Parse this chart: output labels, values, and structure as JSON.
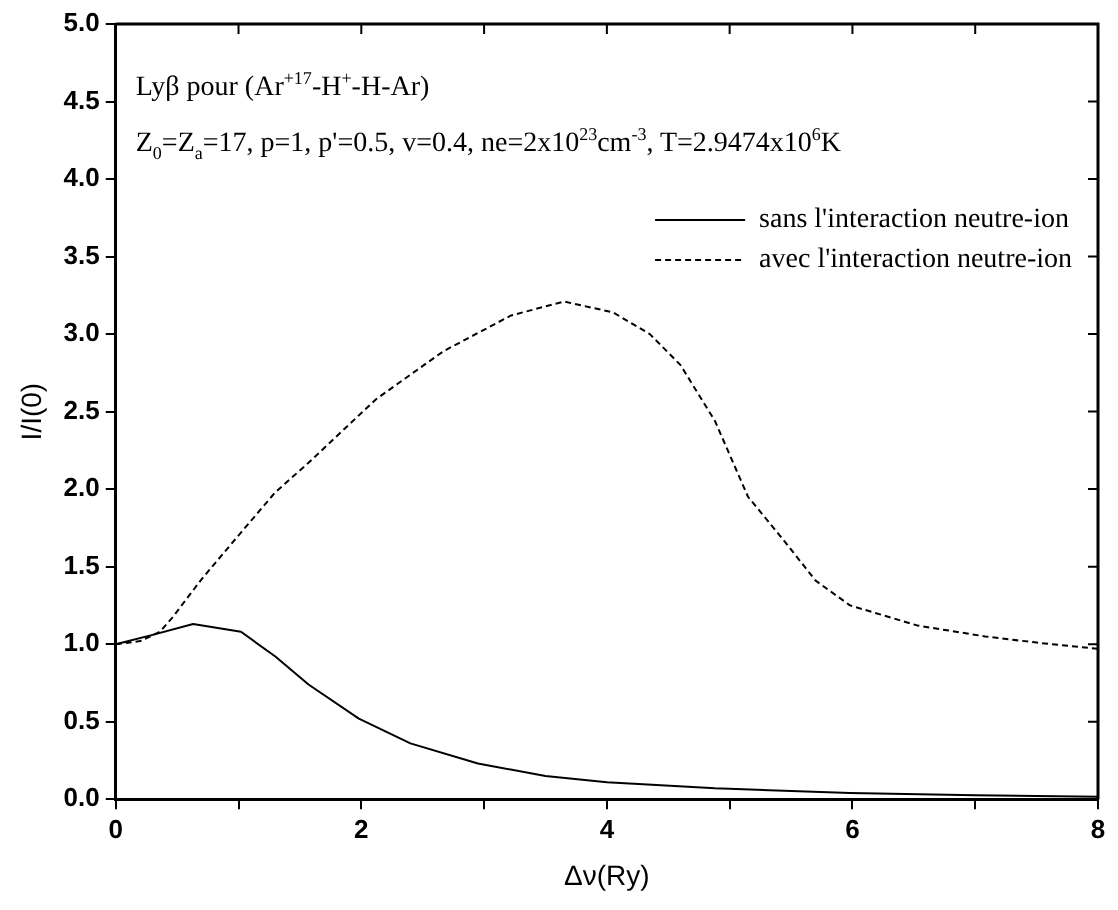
{
  "chart_data": {
    "type": "line",
    "xlabel": "Δν(Ry)",
    "ylabel": "I/I(0)",
    "annotations": [
      "Lyβ pour (Ar$^{+17}$-H$^{+}$-H-Ar)",
      "Z$_{0}$=Z$_{a}$=17, p=1, p'=0.5, v=0.4, ne=2x10$^{23}$cm$^{-3}$, T=2.9474x10$^{6}$K"
    ],
    "xlim": [
      0,
      8
    ],
    "xticks": [
      0,
      {
        "value": 1,
        "label": null
      },
      2,
      {
        "value": 3,
        "label": null
      },
      4,
      {
        "value": 5,
        "label": null
      },
      6,
      {
        "value": 7,
        "label": null
      },
      8
    ],
    "ylim": [
      0,
      5
    ],
    "yticks": [
      {
        "value": 0,
        "label": "0.0"
      },
      0.5,
      {
        "value": 1,
        "label": "1.0"
      },
      1.5,
      {
        "value": 2,
        "label": "2.0"
      },
      2.5,
      {
        "value": 3,
        "label": "3.0"
      },
      3.5,
      {
        "value": 4,
        "label": "4.0"
      },
      4.5,
      {
        "value": 5,
        "label": "5.0"
      }
    ],
    "grid": false,
    "legend": "top right",
    "marker": "none",
    "series": [
      {
        "name": "sans l'interaction neutre-ion",
        "color": "#000000",
        "line_style": "solid",
        "x": [
          0,
          0.3,
          0.63,
          1.02,
          1.3,
          1.57,
          1.98,
          2.4,
          2.95,
          3.5,
          4.0,
          4.88,
          5.98,
          7.0,
          8
        ],
        "values": [
          1.0,
          1.06,
          1.13,
          1.08,
          0.92,
          0.74,
          0.52,
          0.36,
          0.23,
          0.15,
          0.11,
          0.07,
          0.04,
          0.025,
          0.015
        ]
      },
      {
        "name": "avec l'interaction neutre-ion",
        "color": "#000000",
        "line_style": "dashed",
        "x": [
          0,
          0.2,
          0.36,
          0.47,
          0.7,
          1.02,
          1.3,
          1.57,
          2.12,
          2.67,
          3.22,
          3.65,
          4.05,
          4.35,
          4.6,
          4.88,
          5.15,
          5.43,
          5.7,
          5.98,
          6.53,
          7.08,
          7.5,
          8
        ],
        "values": [
          1.0,
          1.02,
          1.08,
          1.18,
          1.42,
          1.72,
          1.98,
          2.17,
          2.58,
          2.89,
          3.12,
          3.21,
          3.14,
          3.0,
          2.8,
          2.44,
          1.95,
          1.68,
          1.41,
          1.25,
          1.12,
          1.05,
          1.01,
          0.97
        ]
      }
    ]
  }
}
